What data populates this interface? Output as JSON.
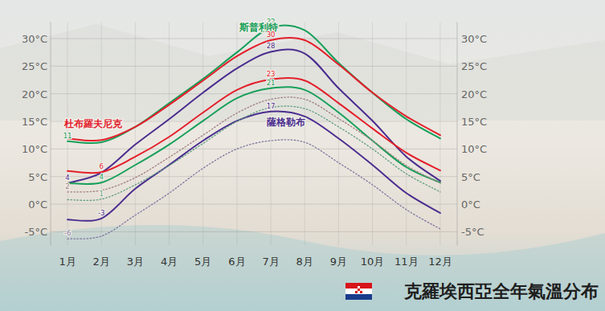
{
  "chart_data": {
    "type": "line",
    "title": "克羅埃西亞全年氣溫分布",
    "categories": [
      "1月",
      "2月",
      "3月",
      "4月",
      "5月",
      "6月",
      "7月",
      "8月",
      "9月",
      "10月",
      "11月",
      "12月"
    ],
    "ylim": [
      -7.5,
      33
    ],
    "yticks": [
      {
        "value": -5,
        "label": "-5°C"
      },
      {
        "value": 0,
        "label": "0°C"
      },
      {
        "value": 5,
        "label": "5°C"
      },
      {
        "value": 10,
        "label": "10°C"
      },
      {
        "value": 15,
        "label": "15°C"
      },
      {
        "value": 20,
        "label": "20°C"
      },
      {
        "value": 25,
        "label": "25°C"
      },
      {
        "value": 30,
        "label": "30°C"
      }
    ],
    "grid": true,
    "data_labels": true,
    "series": [
      {
        "name": "斯普利特",
        "color": "#17a05a",
        "line_style": "solid",
        "values": [
          11.4,
          11.2,
          14,
          18.3,
          22.7,
          27.5,
          32,
          31.5,
          25.6,
          20.2,
          15.4,
          11.9
        ],
        "value_labels": [
          "11",
          null,
          null,
          null,
          null,
          null,
          "32",
          null,
          null,
          null,
          null,
          null
        ]
      },
      {
        "name": "杜布羅夫尼克",
        "color": "#e3202b",
        "line_style": "solid",
        "values": [
          11.9,
          11.6,
          14,
          18,
          22.4,
          26.8,
          29.7,
          29.7,
          25.3,
          20.2,
          15.9,
          12.5
        ],
        "value_labels": [
          null,
          null,
          null,
          null,
          null,
          null,
          "30",
          null,
          null,
          null,
          null,
          null
        ]
      },
      {
        "name": "薩格勒布",
        "color": "#4b2d8f",
        "line_style": "solid",
        "values": [
          3.8,
          5.7,
          10.8,
          15.4,
          20.2,
          24.6,
          27.6,
          27.3,
          21,
          15.1,
          8.6,
          4.2
        ],
        "value_labels": [
          "4",
          null,
          null,
          null,
          null,
          null,
          "28",
          null,
          null,
          null,
          null,
          null
        ]
      },
      {
        "color": "#e3202b",
        "line_style": "solid",
        "values": [
          6,
          5.8,
          8.6,
          12.2,
          16.6,
          20.7,
          22.6,
          22.4,
          18.3,
          13.7,
          9.3,
          6.1
        ],
        "value_labels": [
          null,
          "6",
          null,
          null,
          null,
          null,
          "23",
          null,
          null,
          null,
          null,
          null
        ]
      },
      {
        "color": "#17a05a",
        "line_style": "solid",
        "values": [
          3.8,
          3.9,
          7.1,
          10.8,
          15.1,
          19.2,
          21,
          20.7,
          16.6,
          11.5,
          6.7,
          3.9
        ],
        "value_labels": [
          null,
          "4",
          null,
          null,
          null,
          null,
          "21",
          null,
          null,
          null,
          null,
          null
        ]
      },
      {
        "color": "#4b2d8f",
        "line_style": "solid",
        "values": [
          -2.8,
          -2.6,
          2.8,
          7.1,
          11.5,
          15.1,
          16.8,
          15.9,
          11.9,
          7.1,
          2,
          -1.6
        ],
        "value_labels": [
          null,
          "-3",
          null,
          null,
          null,
          null,
          "17",
          null,
          null,
          null,
          null,
          null
        ]
      },
      {
        "color": "#a07e7e",
        "line_style": "dotted",
        "values": [
          2.2,
          2.5,
          4.8,
          8.5,
          12.5,
          16.5,
          19,
          19,
          15.5,
          11.5,
          7,
          3.8
        ],
        "value_labels": [
          "2",
          null,
          null,
          null,
          null,
          null,
          null,
          null,
          null,
          null,
          null,
          null
        ]
      },
      {
        "color": "#5f9e80",
        "line_style": "dotted",
        "values": [
          0.8,
          0.9,
          3.5,
          7,
          11,
          15,
          17.5,
          17.3,
          14,
          10,
          5.5,
          2.2
        ],
        "value_labels": [
          null,
          "1",
          null,
          null,
          null,
          null,
          null,
          null,
          null,
          null,
          null,
          null
        ]
      },
      {
        "color": "#7f76a0",
        "line_style": "dotted",
        "values": [
          -6.3,
          -5.8,
          -2,
          2,
          6.5,
          10,
          11.5,
          11.2,
          7.5,
          3.5,
          -1,
          -4.5
        ],
        "value_labels": [
          "-6",
          null,
          null,
          null,
          null,
          null,
          null,
          null,
          null,
          null,
          null,
          null
        ]
      }
    ]
  }
}
